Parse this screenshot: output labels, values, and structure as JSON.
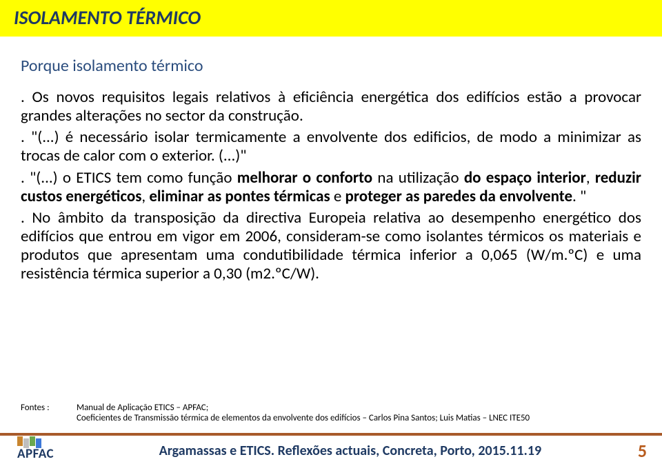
{
  "header": {
    "title": "ISOLAMENTO TÉRMICO"
  },
  "content": {
    "subtitle": "Porque isolamento térmico",
    "p1_prefix": ". Os novos requisitos legais relativos à eficiência energética dos edifícios estão a provocar grandes alterações no sector da construção.",
    "p2": ". \"(...) é necessário isolar termicamente a envolvente dos edificios, de modo a minimizar as trocas de calor com o exterior. (...)\"",
    "p3_a": ". \"(...) o ETICS tem como função ",
    "p3_b": "melhorar o conforto",
    "p3_c": " na utilização ",
    "p3_d": "do espaço interior",
    "p3_e": ", ",
    "p3_f": "reduzir custos energéticos",
    "p3_g": ", ",
    "p3_h": "eliminar as pontes térmicas",
    "p3_i": " e ",
    "p3_j": "proteger as paredes da envolvente",
    "p3_k": ". \"",
    "p4": ". No âmbito da transposição da directiva Europeia relativa ao desempenho energético dos edifícios que entrou em vigor em 2006, consideram-se como isolantes térmicos os materiais e produtos que apresentam uma condutibilidade térmica inferior a 0,065 (W/m.ºC) e uma resistência térmica superior a 0,30 (m2.ºC/W)."
  },
  "sources": {
    "label": "Fontes :",
    "line1": "Manual de Aplicação ETICS – APFAC;",
    "line2": "Coeficientes de Transmissão térmica de elementos da envolvente dos edifícios – Carlos Pina Santos; Luis Matias – LNEC ITE50"
  },
  "footer": {
    "logo_text": "APFAC",
    "title": "Argamassas e ETICS. Reflexões actuais, Concreta, Porto, 2015.11.19",
    "page": "5"
  },
  "colors": {
    "title_bg": "#ffff00",
    "title_fg": "#1f3a63",
    "subtitle_fg": "#2a4c7d",
    "body_fg": "#000000",
    "rule": "#a85a2a",
    "page_fg": "#b85c1e"
  }
}
